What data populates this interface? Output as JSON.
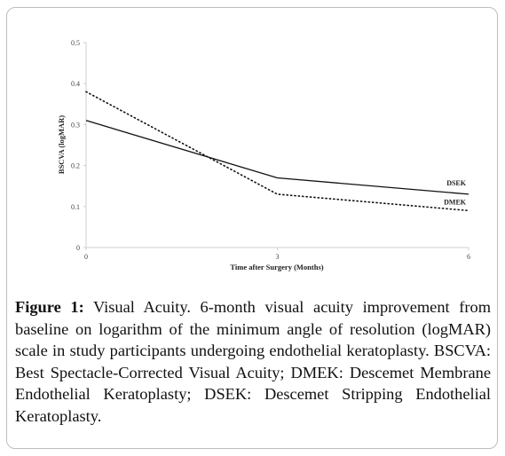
{
  "chart_data": {
    "type": "line",
    "x": [
      0,
      3,
      6
    ],
    "series": [
      {
        "name": "DSEK",
        "values": [
          0.31,
          0.17,
          0.13
        ],
        "style": "solid",
        "color": "#111111"
      },
      {
        "name": "DMEK",
        "values": [
          0.38,
          0.13,
          0.09
        ],
        "style": "dotted",
        "color": "#111111"
      }
    ],
    "xlabel": "Time after Surgery (Months)",
    "ylabel": "BSCVA (logMAR)",
    "xticks": [
      "0",
      "3",
      "6"
    ],
    "yticks": [
      "0",
      "0.1",
      "0.2",
      "0.3",
      "0.4",
      "0.5"
    ],
    "xlim": [
      0,
      6
    ],
    "ylim": [
      0,
      0.5
    ],
    "grid": false,
    "legend": "inline labels at right end of lines"
  },
  "caption": {
    "label": "Figure 1:",
    "text": " Visual Acuity. 6-month visual acuity improvement from baseline on logarithm of the minimum angle of resolution (logMAR) scale in study participants undergoing endothelial keratoplasty. BSCVA: Best Spectacle-Corrected Visual Acuity; DMEK: Descemet Membrane Endothelial Keratoplasty; DSEK: Descemet Stripping Endothelial Keratoplasty."
  }
}
